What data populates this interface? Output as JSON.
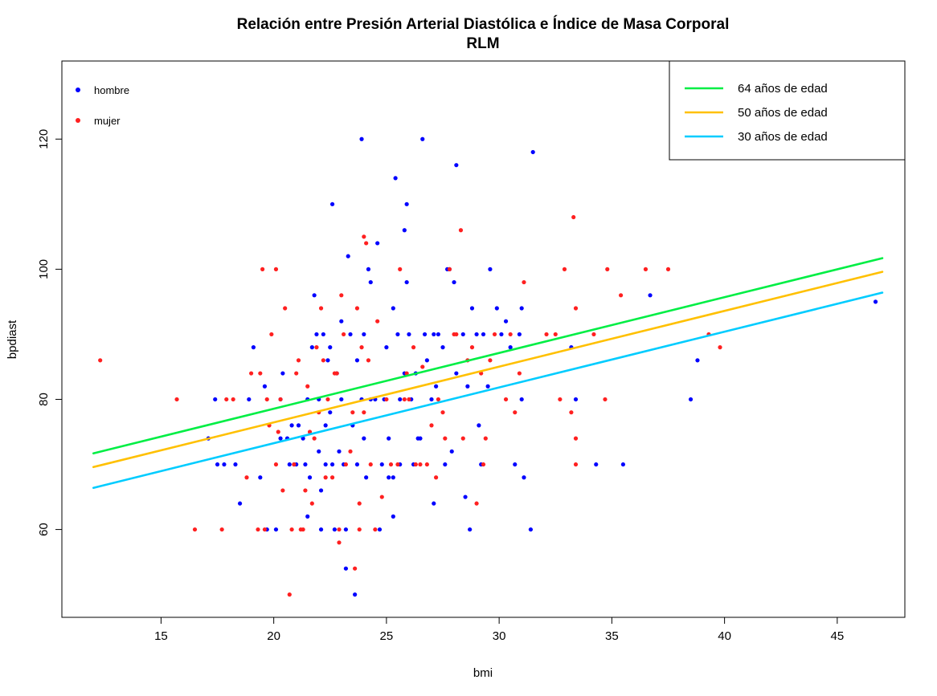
{
  "chart_data": {
    "type": "scatter",
    "title": "Relación entre Presión Arterial Diastólica e Índice de Masa Corporal",
    "subtitle": "RLM",
    "xlabel": "bmi",
    "ylabel": "bpdiast",
    "xlim": [
      10.6,
      48.0
    ],
    "ylim": [
      46.5,
      132.0
    ],
    "xticks": [
      15,
      20,
      25,
      30,
      35,
      40,
      45
    ],
    "yticks": [
      60,
      80,
      100,
      120
    ],
    "grid": false,
    "point_legend_position": "top-left",
    "line_legend_position": "top-right",
    "point_series": [
      {
        "name": "hombre",
        "color": "#0000ff",
        "points": [
          [
            17.1,
            74
          ],
          [
            17.4,
            80
          ],
          [
            17.5,
            70
          ],
          [
            17.8,
            70
          ],
          [
            18.3,
            70
          ],
          [
            18.5,
            64
          ],
          [
            18.9,
            80
          ],
          [
            19.1,
            88
          ],
          [
            19.4,
            68
          ],
          [
            19.6,
            82
          ],
          [
            19.7,
            60
          ],
          [
            20.1,
            60
          ],
          [
            20.3,
            80
          ],
          [
            20.3,
            74
          ],
          [
            20.4,
            84
          ],
          [
            20.6,
            74
          ],
          [
            20.7,
            70
          ],
          [
            20.8,
            76
          ],
          [
            20.9,
            70
          ],
          [
            21.0,
            70
          ],
          [
            21.1,
            76
          ],
          [
            21.3,
            74
          ],
          [
            21.4,
            70
          ],
          [
            21.5,
            80
          ],
          [
            21.5,
            62
          ],
          [
            21.6,
            68
          ],
          [
            21.7,
            88
          ],
          [
            21.8,
            96
          ],
          [
            21.9,
            90
          ],
          [
            22.0,
            80
          ],
          [
            22.0,
            72
          ],
          [
            22.1,
            66
          ],
          [
            22.1,
            60
          ],
          [
            22.2,
            90
          ],
          [
            22.3,
            76
          ],
          [
            22.3,
            70
          ],
          [
            22.4,
            86
          ],
          [
            22.5,
            88
          ],
          [
            22.5,
            78
          ],
          [
            22.6,
            110
          ],
          [
            22.6,
            70
          ],
          [
            22.7,
            60
          ],
          [
            22.8,
            84
          ],
          [
            22.9,
            72
          ],
          [
            23.0,
            92
          ],
          [
            23.0,
            80
          ],
          [
            23.1,
            70
          ],
          [
            23.2,
            60
          ],
          [
            23.2,
            54
          ],
          [
            23.3,
            102
          ],
          [
            23.4,
            90
          ],
          [
            23.5,
            76
          ],
          [
            23.6,
            50
          ],
          [
            23.7,
            86
          ],
          [
            23.7,
            70
          ],
          [
            23.9,
            120
          ],
          [
            23.9,
            80
          ],
          [
            24.0,
            90
          ],
          [
            24.0,
            74
          ],
          [
            24.1,
            68
          ],
          [
            24.2,
            100
          ],
          [
            24.3,
            98
          ],
          [
            24.3,
            80
          ],
          [
            24.5,
            80
          ],
          [
            24.6,
            104
          ],
          [
            24.7,
            60
          ],
          [
            24.8,
            70
          ],
          [
            24.9,
            80
          ],
          [
            25.0,
            88
          ],
          [
            25.1,
            74
          ],
          [
            25.1,
            68
          ],
          [
            25.3,
            94
          ],
          [
            25.3,
            68
          ],
          [
            25.3,
            62
          ],
          [
            25.4,
            114
          ],
          [
            25.5,
            90
          ],
          [
            25.6,
            80
          ],
          [
            25.6,
            70
          ],
          [
            25.8,
            106
          ],
          [
            25.8,
            84
          ],
          [
            25.9,
            110
          ],
          [
            25.9,
            98
          ],
          [
            26.0,
            90
          ],
          [
            26.1,
            80
          ],
          [
            26.2,
            70
          ],
          [
            26.3,
            84
          ],
          [
            26.4,
            74
          ],
          [
            26.5,
            74
          ],
          [
            26.6,
            120
          ],
          [
            26.7,
            90
          ],
          [
            26.8,
            86
          ],
          [
            27.0,
            80
          ],
          [
            27.1,
            90
          ],
          [
            27.1,
            64
          ],
          [
            27.2,
            82
          ],
          [
            27.3,
            90
          ],
          [
            27.5,
            88
          ],
          [
            27.6,
            70
          ],
          [
            27.7,
            100
          ],
          [
            27.8,
            100
          ],
          [
            27.9,
            72
          ],
          [
            28.0,
            98
          ],
          [
            28.1,
            116
          ],
          [
            28.1,
            84
          ],
          [
            28.4,
            90
          ],
          [
            28.5,
            65
          ],
          [
            28.6,
            82
          ],
          [
            28.7,
            60
          ],
          [
            28.8,
            94
          ],
          [
            29.0,
            90
          ],
          [
            29.1,
            76
          ],
          [
            29.2,
            70
          ],
          [
            29.3,
            90
          ],
          [
            29.5,
            82
          ],
          [
            29.6,
            100
          ],
          [
            29.9,
            94
          ],
          [
            30.1,
            90
          ],
          [
            30.3,
            92
          ],
          [
            30.5,
            88
          ],
          [
            30.7,
            70
          ],
          [
            30.9,
            90
          ],
          [
            31.0,
            94
          ],
          [
            31.0,
            80
          ],
          [
            31.1,
            68
          ],
          [
            31.4,
            60
          ],
          [
            31.5,
            118
          ],
          [
            33.2,
            88
          ],
          [
            33.4,
            80
          ],
          [
            34.3,
            70
          ],
          [
            35.5,
            70
          ],
          [
            36.7,
            96
          ],
          [
            38.5,
            80
          ],
          [
            38.8,
            86
          ],
          [
            46.7,
            95
          ]
        ]
      },
      {
        "name": "mujer",
        "color": "#ff2020",
        "points": [
          [
            12.3,
            86
          ],
          [
            15.7,
            80
          ],
          [
            16.5,
            60
          ],
          [
            17.7,
            60
          ],
          [
            17.9,
            80
          ],
          [
            18.2,
            80
          ],
          [
            18.8,
            68
          ],
          [
            19.0,
            84
          ],
          [
            19.3,
            60
          ],
          [
            19.4,
            84
          ],
          [
            19.5,
            100
          ],
          [
            19.6,
            60
          ],
          [
            19.7,
            80
          ],
          [
            19.8,
            76
          ],
          [
            19.9,
            90
          ],
          [
            20.1,
            70
          ],
          [
            20.1,
            100
          ],
          [
            20.2,
            75
          ],
          [
            20.3,
            80
          ],
          [
            20.4,
            66
          ],
          [
            20.5,
            94
          ],
          [
            20.7,
            50
          ],
          [
            20.8,
            60
          ],
          [
            20.9,
            70
          ],
          [
            21.0,
            84
          ],
          [
            21.1,
            86
          ],
          [
            21.2,
            60
          ],
          [
            21.3,
            60
          ],
          [
            21.4,
            66
          ],
          [
            21.5,
            82
          ],
          [
            21.6,
            75
          ],
          [
            21.7,
            64
          ],
          [
            21.8,
            74
          ],
          [
            21.9,
            88
          ],
          [
            22.0,
            78
          ],
          [
            22.1,
            94
          ],
          [
            22.2,
            86
          ],
          [
            22.3,
            68
          ],
          [
            22.4,
            80
          ],
          [
            22.6,
            68
          ],
          [
            22.7,
            84
          ],
          [
            22.8,
            84
          ],
          [
            22.9,
            60
          ],
          [
            22.9,
            58
          ],
          [
            23.0,
            96
          ],
          [
            23.1,
            90
          ],
          [
            23.2,
            70
          ],
          [
            23.4,
            72
          ],
          [
            23.5,
            78
          ],
          [
            23.6,
            54
          ],
          [
            23.7,
            94
          ],
          [
            23.8,
            64
          ],
          [
            23.8,
            60
          ],
          [
            23.9,
            88
          ],
          [
            24.0,
            105
          ],
          [
            24.0,
            78
          ],
          [
            24.1,
            104
          ],
          [
            24.2,
            86
          ],
          [
            24.3,
            70
          ],
          [
            24.5,
            60
          ],
          [
            24.6,
            92
          ],
          [
            24.8,
            65
          ],
          [
            25.0,
            80
          ],
          [
            25.2,
            70
          ],
          [
            25.5,
            70
          ],
          [
            25.6,
            100
          ],
          [
            25.8,
            80
          ],
          [
            25.9,
            84
          ],
          [
            26.0,
            80
          ],
          [
            26.2,
            88
          ],
          [
            26.3,
            70
          ],
          [
            26.5,
            70
          ],
          [
            26.6,
            85
          ],
          [
            26.8,
            70
          ],
          [
            27.0,
            76
          ],
          [
            27.2,
            68
          ],
          [
            27.3,
            80
          ],
          [
            27.5,
            78
          ],
          [
            27.6,
            74
          ],
          [
            27.8,
            100
          ],
          [
            28.0,
            90
          ],
          [
            28.1,
            90
          ],
          [
            28.3,
            106
          ],
          [
            28.4,
            74
          ],
          [
            28.6,
            86
          ],
          [
            28.8,
            88
          ],
          [
            29.0,
            64
          ],
          [
            29.2,
            84
          ],
          [
            29.3,
            70
          ],
          [
            29.4,
            74
          ],
          [
            29.6,
            86
          ],
          [
            29.8,
            90
          ],
          [
            30.3,
            80
          ],
          [
            30.5,
            90
          ],
          [
            30.7,
            78
          ],
          [
            30.9,
            84
          ],
          [
            31.1,
            98
          ],
          [
            32.1,
            90
          ],
          [
            32.5,
            90
          ],
          [
            32.7,
            80
          ],
          [
            32.9,
            100
          ],
          [
            33.2,
            78
          ],
          [
            33.3,
            108
          ],
          [
            33.4,
            74
          ],
          [
            33.4,
            70
          ],
          [
            33.4,
            94
          ],
          [
            34.2,
            90
          ],
          [
            34.7,
            80
          ],
          [
            34.8,
            100
          ],
          [
            35.4,
            96
          ],
          [
            36.5,
            100
          ],
          [
            37.5,
            100
          ],
          [
            39.3,
            90
          ],
          [
            39.8,
            88
          ]
        ]
      }
    ],
    "line_series": [
      {
        "name": "64 años de edad",
        "color": "#00ee44",
        "x": [
          12.0,
          47.0
        ],
        "y": [
          71.7,
          101.7
        ]
      },
      {
        "name": "50 años de edad",
        "color": "#ffc000",
        "x": [
          12.0,
          47.0
        ],
        "y": [
          69.6,
          99.6
        ]
      },
      {
        "name": "30 años de edad",
        "color": "#00ccff",
        "x": [
          12.0,
          47.0
        ],
        "y": [
          66.4,
          96.4
        ]
      }
    ]
  }
}
